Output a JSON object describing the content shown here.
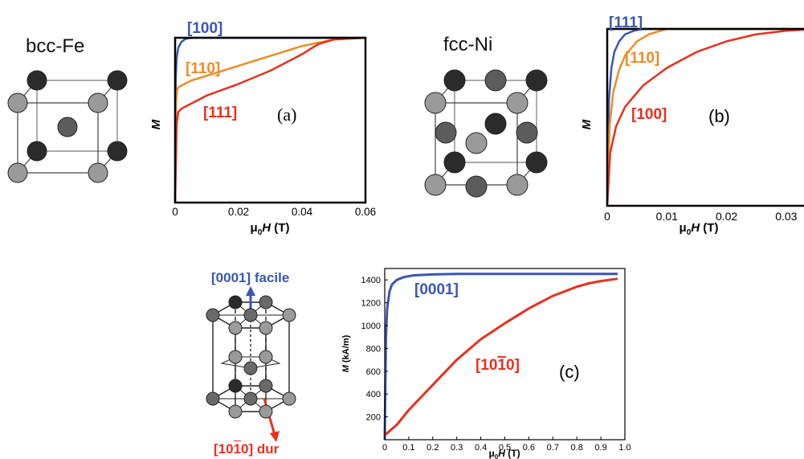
{
  "labels": {
    "bcc": "bcc-Fe",
    "fcc": "fcc-Ni",
    "easy": "[0001] facile",
    "hard_prefix": "[10",
    "hard_bar": "1",
    "hard_suffix": "0] dur"
  },
  "colors": {
    "blue": "#3a55b4",
    "orange": "#f08a24",
    "red": "#e8301f"
  },
  "chart_data": [
    {
      "type": "line",
      "panel": "(a)",
      "xlabel_prefix": "μ",
      "xlabel_sub": "0",
      "xlabel_var": "H",
      "xlabel_unit": " (T)",
      "ylabel": "M",
      "xlim": [
        0,
        0.06
      ],
      "xticks": [
        "0",
        "0.02",
        "0.04",
        "0.06"
      ],
      "ylim": [
        0,
        1
      ],
      "series": [
        {
          "name": "[100]",
          "color": "#3a55b4",
          "x": [
            0,
            0.0002,
            0.0005,
            0.001,
            0.002,
            0.003,
            0.004,
            0.006,
            0.06
          ],
          "y": [
            0,
            0.75,
            0.88,
            0.94,
            0.975,
            0.99,
            0.997,
            1,
            1
          ]
        },
        {
          "name": "[110]",
          "color": "#f08a24",
          "x": [
            0,
            0.0003,
            0.0006,
            0.001,
            0.002,
            0.005,
            0.01,
            0.02,
            0.03,
            0.04,
            0.05,
            0.06
          ],
          "y": [
            0,
            0.6,
            0.68,
            0.7,
            0.71,
            0.74,
            0.77,
            0.83,
            0.89,
            0.95,
            0.99,
            1
          ]
        },
        {
          "name": "[111]",
          "color": "#e8301f",
          "x": [
            0,
            0.0005,
            0.001,
            0.002,
            0.005,
            0.01,
            0.02,
            0.03,
            0.04,
            0.045,
            0.05,
            0.06
          ],
          "y": [
            0,
            0.48,
            0.55,
            0.57,
            0.6,
            0.65,
            0.72,
            0.8,
            0.9,
            0.96,
            0.99,
            1
          ]
        }
      ]
    },
    {
      "type": "line",
      "panel": "(b)",
      "xlabel_prefix": "μ",
      "xlabel_sub": "0",
      "xlabel_var": "H",
      "xlabel_unit": " (T)",
      "ylabel": "M",
      "xlim": [
        0,
        0.035
      ],
      "xticks": [
        "0",
        "0.01",
        "0.02",
        "0.03"
      ],
      "ylim": [
        0,
        1
      ],
      "series": [
        {
          "name": "[111]",
          "color": "#3a55b4",
          "x": [
            0,
            0.0003,
            0.0007,
            0.0012,
            0.002,
            0.003,
            0.0045,
            0.006,
            0.035
          ],
          "y": [
            0,
            0.6,
            0.78,
            0.87,
            0.93,
            0.97,
            0.99,
            1,
            1
          ]
        },
        {
          "name": "[110]",
          "color": "#f08a24",
          "x": [
            0,
            0.0004,
            0.001,
            0.002,
            0.003,
            0.005,
            0.007,
            0.01,
            0.035
          ],
          "y": [
            0,
            0.45,
            0.64,
            0.77,
            0.85,
            0.93,
            0.97,
            1,
            1
          ]
        },
        {
          "name": "[100]",
          "color": "#e8301f",
          "x": [
            0,
            0.0005,
            0.0015,
            0.003,
            0.006,
            0.01,
            0.015,
            0.02,
            0.025,
            0.03,
            0.035
          ],
          "y": [
            0,
            0.3,
            0.45,
            0.56,
            0.68,
            0.78,
            0.87,
            0.93,
            0.97,
            0.99,
            1
          ]
        }
      ]
    },
    {
      "type": "line",
      "panel": "(c)",
      "xlabel_prefix": "μ",
      "xlabel_sub": "0",
      "xlabel_var": "H",
      "xlabel_unit": " (T)",
      "ylabel_var": "M",
      "ylabel_unit": " (kA/m)",
      "xlim": [
        0,
        1.0
      ],
      "ylim": [
        0,
        1500
      ],
      "xticks": [
        "0",
        "0.1",
        "0.2",
        "0.3",
        "0.4",
        "0.5",
        "0.6",
        "0.7",
        "0.8",
        "0.9",
        "1.0"
      ],
      "yticks": [
        "200",
        "400",
        "600",
        "800",
        "1000",
        "1200",
        "1400"
      ],
      "series": [
        {
          "name": "[0001]",
          "color": "#3a55b4",
          "x": [
            0,
            0.005,
            0.01,
            0.02,
            0.03,
            0.05,
            0.08,
            0.12,
            0.2,
            0.3,
            0.97
          ],
          "y": [
            0,
            900,
            1150,
            1300,
            1360,
            1400,
            1425,
            1440,
            1448,
            1452,
            1452
          ]
        },
        {
          "name_prefix": "[10",
          "name_bar": "1",
          "name_suffix": "0]",
          "color": "#e8301f",
          "x": [
            0,
            0.05,
            0.1,
            0.2,
            0.3,
            0.4,
            0.5,
            0.6,
            0.7,
            0.8,
            0.85,
            0.9,
            0.97
          ],
          "y": [
            40,
            130,
            260,
            480,
            700,
            880,
            1020,
            1150,
            1260,
            1340,
            1370,
            1390,
            1410
          ]
        }
      ]
    }
  ]
}
